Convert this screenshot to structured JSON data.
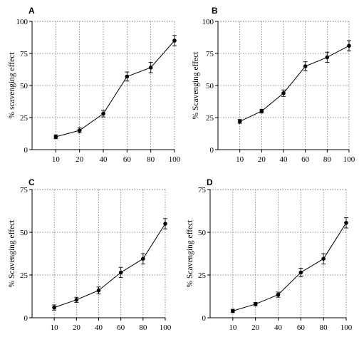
{
  "chart_data": [
    {
      "panel": "A",
      "type": "line",
      "categories": [
        "10",
        "20",
        "40",
        "60",
        "80",
        "100"
      ],
      "values": [
        10,
        15,
        28,
        57,
        64,
        85
      ],
      "errors": [
        1.5,
        2,
        2.5,
        3.5,
        4,
        4
      ],
      "ylabel": "% scavenging effect",
      "ylim": [
        0,
        100
      ],
      "yticks": [
        "0",
        "25",
        "50",
        "75",
        "100"
      ],
      "grid": true
    },
    {
      "panel": "B",
      "type": "line",
      "categories": [
        "10",
        "20",
        "40",
        "60",
        "80",
        "100"
      ],
      "values": [
        22,
        30,
        44,
        65,
        72,
        81
      ],
      "errors": [
        1.5,
        1.5,
        2.5,
        3.5,
        4,
        4
      ],
      "ylabel": "% Scavenging effect",
      "ylim": [
        0,
        100
      ],
      "yticks": [
        "0",
        "25",
        "50",
        "75",
        "100"
      ],
      "grid": true
    },
    {
      "panel": "C",
      "type": "line",
      "categories": [
        "10",
        "20",
        "40",
        "60",
        "80",
        "100"
      ],
      "values": [
        6,
        10.5,
        16,
        26.5,
        34.5,
        55
      ],
      "errors": [
        1.5,
        1.5,
        2,
        3,
        3,
        3
      ],
      "ylabel": "% Scavenging effect",
      "ylim": [
        0,
        75
      ],
      "yticks": [
        "0",
        "25",
        "50",
        "75"
      ],
      "grid": true
    },
    {
      "panel": "D",
      "type": "line",
      "categories": [
        "10",
        "20",
        "40",
        "60",
        "80",
        "100"
      ],
      "values": [
        4,
        8,
        13.5,
        26.5,
        34.5,
        55.5
      ],
      "errors": [
        1,
        1,
        1.5,
        2.5,
        3,
        3
      ],
      "ylabel": "% Scavenging effect",
      "ylim": [
        0,
        75
      ],
      "yticks": [
        "0",
        "25",
        "50",
        "75"
      ],
      "grid": true
    }
  ]
}
